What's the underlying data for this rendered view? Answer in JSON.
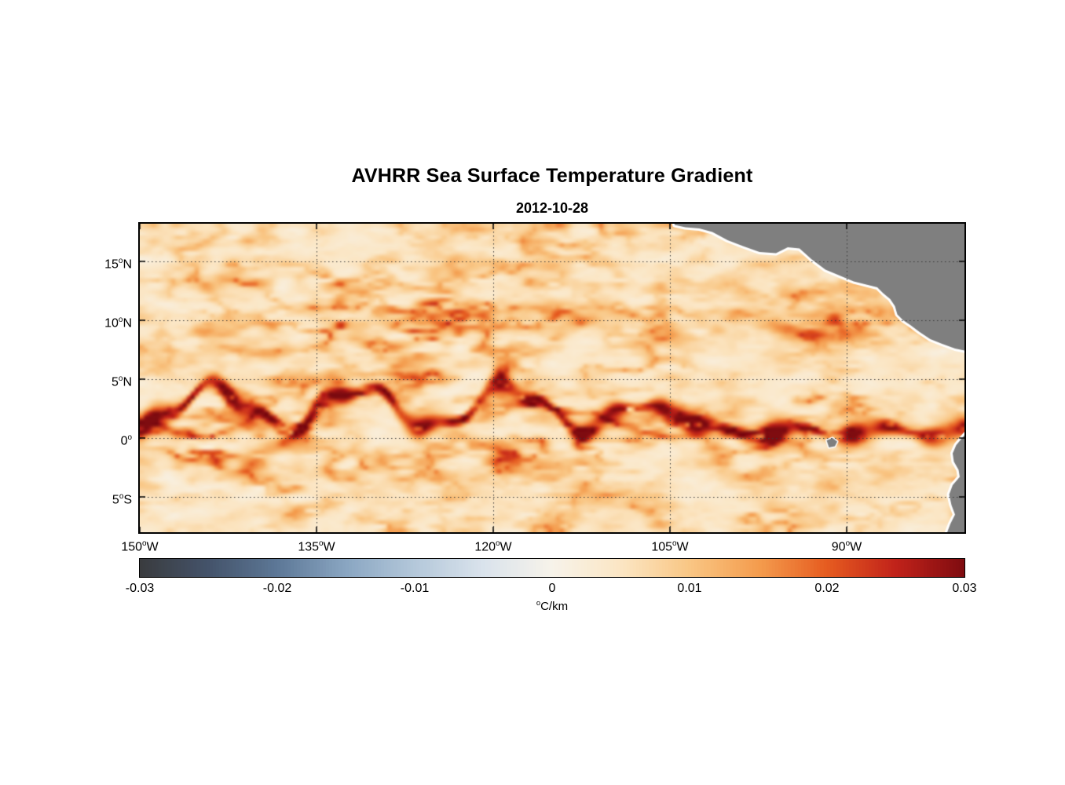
{
  "figure": {
    "title": "AVHRR Sea Surface Temperature Gradient",
    "date": "2012-10-28"
  },
  "chart_data": {
    "type": "heatmap",
    "title": "AVHRR Sea Surface Temperature Gradient",
    "date": "2012-10-28",
    "value_units": "°C/km",
    "value_range": [
      -0.03,
      0.03
    ],
    "x_axis": {
      "range_deg_east": [
        -150,
        -80
      ],
      "ticks": [
        {
          "value": -150,
          "parts": {
            "num": "150",
            "sup": "o",
            "dir": "W"
          }
        },
        {
          "value": -135,
          "parts": {
            "num": "135",
            "sup": "o",
            "dir": "W"
          }
        },
        {
          "value": -120,
          "parts": {
            "num": "120",
            "sup": "o",
            "dir": "W"
          }
        },
        {
          "value": -105,
          "parts": {
            "num": "105",
            "sup": "o",
            "dir": "W"
          }
        },
        {
          "value": -90,
          "parts": {
            "num": "90",
            "sup": "o",
            "dir": "W"
          }
        }
      ]
    },
    "y_axis": {
      "range_deg_north": [
        -8,
        18.2
      ],
      "ticks": [
        {
          "value": 15,
          "parts": {
            "num": "15",
            "sup": "o",
            "dir": "N"
          }
        },
        {
          "value": 10,
          "parts": {
            "num": "10",
            "sup": "o",
            "dir": "N"
          }
        },
        {
          "value": 5,
          "parts": {
            "num": "5",
            "sup": "o",
            "dir": "N"
          }
        },
        {
          "value": 0,
          "parts": {
            "num": "0",
            "sup": "o",
            "dir": ""
          }
        },
        {
          "value": -5,
          "parts": {
            "num": "5",
            "sup": "o",
            "dir": "S"
          }
        }
      ]
    },
    "colorbar": {
      "range": [
        -0.03,
        0.03
      ],
      "tick_labels": [
        "-0.03",
        "-0.02",
        "-0.01",
        "0",
        "0.01",
        "0.02",
        "0.03"
      ],
      "units_parts": {
        "sup": "o",
        "text": "C/km"
      },
      "stops": [
        {
          "t": 0.0,
          "color": "#3a3c3f"
        },
        {
          "t": 0.083,
          "color": "#44536a"
        },
        {
          "t": 0.167,
          "color": "#5d7897"
        },
        {
          "t": 0.25,
          "color": "#8aa6c2"
        },
        {
          "t": 0.333,
          "color": "#b4c8da"
        },
        {
          "t": 0.417,
          "color": "#dae3ec"
        },
        {
          "t": 0.5,
          "color": "#f7f3ea"
        },
        {
          "t": 0.583,
          "color": "#fbe6c4"
        },
        {
          "t": 0.667,
          "color": "#f9c684"
        },
        {
          "t": 0.75,
          "color": "#f49d4e"
        },
        {
          "t": 0.833,
          "color": "#e65c20"
        },
        {
          "t": 0.917,
          "color": "#c1221a"
        },
        {
          "t": 1.0,
          "color": "#7f0c10"
        }
      ]
    },
    "gridlines": {
      "style": "dotted",
      "color": "#3a3a3a",
      "lats": [
        15,
        10,
        5,
        0,
        -5
      ],
      "lons": [
        -135,
        -120,
        -105,
        -90
      ]
    },
    "land_color": "#7f7f7f",
    "coast_halo_color": "#ffffff",
    "land_polygons": {
      "central_america": [
        [
          -104.8,
          19.5
        ],
        [
          -104.6,
          18.1
        ],
        [
          -103.7,
          17.9
        ],
        [
          -102.5,
          17.8
        ],
        [
          -101.4,
          17.5
        ],
        [
          -100.1,
          16.8
        ],
        [
          -98.8,
          16.3
        ],
        [
          -97.4,
          15.8
        ],
        [
          -96.0,
          15.7
        ],
        [
          -95.0,
          16.2
        ],
        [
          -94.0,
          16.1
        ],
        [
          -93.0,
          15.2
        ],
        [
          -91.8,
          14.3
        ],
        [
          -90.6,
          13.8
        ],
        [
          -89.4,
          13.3
        ],
        [
          -88.2,
          13.0
        ],
        [
          -87.4,
          12.8
        ],
        [
          -86.9,
          12.3
        ],
        [
          -86.3,
          11.8
        ],
        [
          -85.9,
          11.2
        ],
        [
          -85.7,
          10.5
        ],
        [
          -85.2,
          10.0
        ],
        [
          -84.6,
          9.6
        ],
        [
          -83.8,
          9.0
        ],
        [
          -82.9,
          8.4
        ],
        [
          -81.9,
          8.0
        ],
        [
          -80.8,
          7.6
        ],
        [
          -79.8,
          7.4
        ],
        [
          -78.0,
          7.6
        ],
        [
          -77.0,
          20.0
        ]
      ],
      "south_america": [
        [
          -79.6,
          0.7
        ],
        [
          -80.2,
          0.0
        ],
        [
          -80.7,
          -0.6
        ],
        [
          -81.0,
          -1.3
        ],
        [
          -80.9,
          -2.0
        ],
        [
          -80.5,
          -2.7
        ],
        [
          -80.4,
          -3.3
        ],
        [
          -81.0,
          -4.0
        ],
        [
          -81.3,
          -4.8
        ],
        [
          -81.1,
          -5.7
        ],
        [
          -80.8,
          -6.5
        ],
        [
          -81.2,
          -7.3
        ],
        [
          -81.5,
          -8.1
        ],
        [
          -81.6,
          -9.0
        ],
        [
          -77.0,
          -9.0
        ]
      ],
      "galapagos": [
        [
          -91.7,
          -0.2
        ],
        [
          -91.2,
          0.0
        ],
        [
          -90.8,
          -0.3
        ],
        [
          -91.0,
          -0.7
        ],
        [
          -91.5,
          -0.8
        ]
      ]
    },
    "features_summary": "Filamentary SST-gradient field over the eastern tropical Pacific. Strongest front (up to ~0.03 °C/km, dark red) lies along the equatorial cold tongue near 0–3°N, with tropical-instability-wave meanders between ~145°W and 100°W; moderate filaments near the NECC (~9–10°N) and off the Central American gap-wind region; weak background gradients (~0–0.005 °C/km, cream). Gray land mask covers Mexico/Central America, northwestern South America and the Galápagos."
  }
}
